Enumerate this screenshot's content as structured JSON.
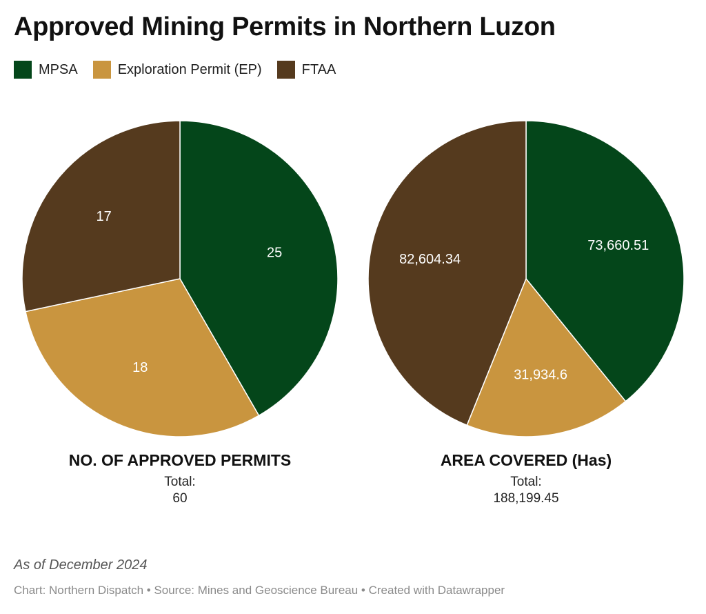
{
  "title": "Approved Mining Permits in Northern Luzon",
  "colors": {
    "mpsa": "#04461a",
    "ep": "#c9953f",
    "ftaa": "#553a1e"
  },
  "legend": [
    {
      "label": "MPSA",
      "color": "#04461a"
    },
    {
      "label": "Exploration Permit (EP)",
      "color": "#c9953f"
    },
    {
      "label": "FTAA",
      "color": "#553a1e"
    }
  ],
  "chart_data": [
    {
      "type": "pie",
      "title": "NO. OF APPROVED PERMITS",
      "total_label": "Total:",
      "total_value": "60",
      "slices": [
        {
          "name": "MPSA",
          "value": 25,
          "label": "25",
          "color": "#04461a"
        },
        {
          "name": "Exploration Permit (EP)",
          "value": 18,
          "label": "18",
          "color": "#c9953f"
        },
        {
          "name": "FTAA",
          "value": 17,
          "label": "17",
          "color": "#553a1e"
        }
      ]
    },
    {
      "type": "pie",
      "title": "AREA COVERED (Has)",
      "total_label": "Total:",
      "total_value": "188,199.45",
      "slices": [
        {
          "name": "MPSA",
          "value": 73660.51,
          "label": "73,660.51",
          "color": "#04461a"
        },
        {
          "name": "Exploration Permit (EP)",
          "value": 31934.6,
          "label": "31,934.6",
          "color": "#c9953f"
        },
        {
          "name": "FTAA",
          "value": 82604.34,
          "label": "82,604.34",
          "color": "#553a1e"
        }
      ]
    }
  ],
  "note": "As of December 2024",
  "footer": "Chart: Northern Dispatch • Source: Mines and Geoscience Bureau • Created with Datawrapper"
}
